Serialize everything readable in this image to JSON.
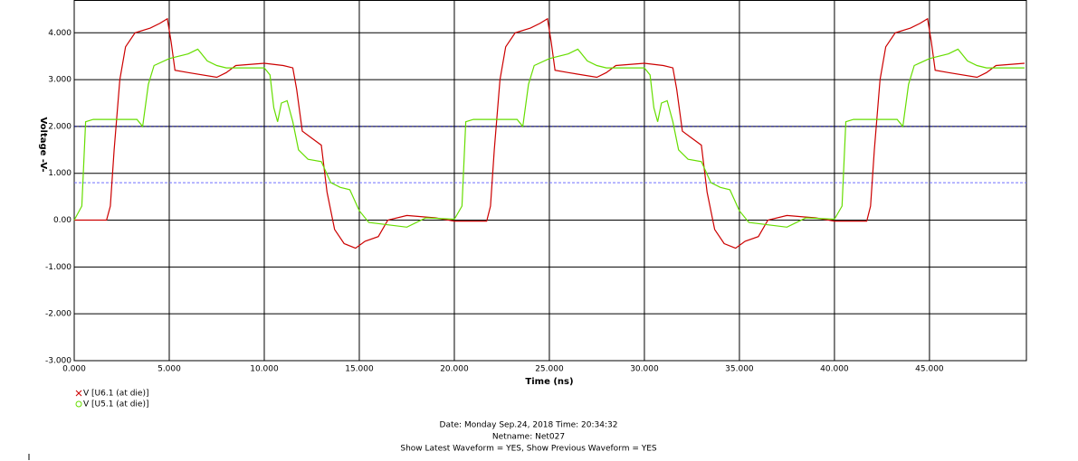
{
  "chart_data": {
    "type": "line",
    "xlabel": "Time (ns)",
    "ylabel": "Voltage -V-",
    "xlim": [
      0,
      50.1
    ],
    "ylim": [
      -3,
      4.7
    ],
    "xticks": [
      {
        "value": 0,
        "label": "0.000"
      },
      {
        "value": 5,
        "label": "5.000"
      },
      {
        "value": 10,
        "label": "10.000"
      },
      {
        "value": 15,
        "label": "15.000"
      },
      {
        "value": 20,
        "label": "20.000"
      },
      {
        "value": 25,
        "label": "25.000"
      },
      {
        "value": 30,
        "label": "30.000"
      },
      {
        "value": 35,
        "label": "35.000"
      },
      {
        "value": 40,
        "label": "40.000"
      },
      {
        "value": 45,
        "label": "45.000"
      }
    ],
    "yticks": [
      {
        "value": 4,
        "label": "4.000"
      },
      {
        "value": 3,
        "label": "3.000"
      },
      {
        "value": 2,
        "label": "2.000"
      },
      {
        "value": 1,
        "label": "1.000"
      },
      {
        "value": 0,
        "label": "0.00"
      },
      {
        "value": -1,
        "label": "-1.000"
      },
      {
        "value": -2,
        "label": "-2.000"
      },
      {
        "value": -3,
        "label": "-3.000"
      }
    ],
    "grid": true,
    "thresholds": [
      {
        "value": 2,
        "color": "#000080"
      },
      {
        "value": 0.8,
        "color": "#7070ff"
      }
    ],
    "series": [
      {
        "name": "V [U6.1 (at die)]",
        "color": "#cc0000",
        "x": [
          0,
          1.7,
          1.9,
          2.1,
          2.4,
          2.7,
          3.2,
          4,
          4.5,
          4.9,
          5.1,
          5.3,
          6,
          7.5,
          8,
          8.5,
          10,
          11,
          11.5,
          11.7,
          12,
          12.5,
          13,
          13.3,
          13.7,
          14.2,
          14.8,
          15.3,
          16,
          16.5,
          17.5,
          19,
          19.7,
          20,
          21.7,
          21.9,
          22.1,
          22.4,
          22.7,
          23.2,
          24,
          24.5,
          24.9,
          25.1,
          25.3,
          26,
          27.5,
          28,
          28.5,
          30,
          31,
          31.5,
          31.7,
          32,
          32.5,
          33,
          33.3,
          33.7,
          34.2,
          34.8,
          35.3,
          36,
          36.5,
          37.5,
          39,
          39.7,
          40,
          41.7,
          41.9,
          42.1,
          42.4,
          42.7,
          43.2,
          44,
          44.5,
          44.9,
          45.1,
          45.3,
          46,
          47.5,
          48,
          48.5,
          50
        ],
        "values": [
          0,
          0,
          0.3,
          1.5,
          3,
          3.7,
          4,
          4.1,
          4.2,
          4.3,
          3.8,
          3.2,
          3.15,
          3.05,
          3.15,
          3.3,
          3.35,
          3.3,
          3.25,
          2.8,
          1.9,
          1.75,
          1.6,
          0.6,
          -0.2,
          -0.5,
          -0.6,
          -0.45,
          -0.35,
          0,
          0.1,
          0.05,
          0,
          -0.02,
          -0.02,
          0.3,
          1.5,
          3,
          3.7,
          4,
          4.1,
          4.2,
          4.3,
          3.8,
          3.2,
          3.15,
          3.05,
          3.15,
          3.3,
          3.35,
          3.3,
          3.25,
          2.8,
          1.9,
          1.75,
          1.6,
          0.6,
          -0.2,
          -0.5,
          -0.6,
          -0.45,
          -0.35,
          0,
          0.1,
          0.05,
          0,
          -0.02,
          -0.02,
          0.3,
          1.5,
          3,
          3.7,
          4,
          4.1,
          4.2,
          4.3,
          3.8,
          3.2,
          3.15,
          3.05,
          3.15,
          3.3,
          3.35
        ]
      },
      {
        "name": "V [U5.1 (at die)]",
        "color": "#66dd00",
        "x": [
          0,
          0.4,
          0.6,
          1,
          3.3,
          3.6,
          3.9,
          4.2,
          5,
          6,
          6.5,
          7,
          7.5,
          8,
          10,
          10.3,
          10.5,
          10.7,
          10.9,
          11.2,
          11.5,
          11.8,
          12.3,
          13,
          13.5,
          14,
          14.5,
          15,
          15.5,
          16.5,
          17.5,
          18.5,
          20,
          20.4,
          20.6,
          21,
          23.3,
          23.6,
          23.9,
          24.2,
          25,
          26,
          26.5,
          27,
          27.5,
          28,
          30,
          30.3,
          30.5,
          30.7,
          30.9,
          31.2,
          31.5,
          31.8,
          32.3,
          33,
          33.5,
          34,
          34.5,
          35,
          35.5,
          36.5,
          37.5,
          38.5,
          40,
          40.4,
          40.6,
          41,
          43.3,
          43.6,
          43.9,
          44.2,
          45,
          46,
          46.5,
          47,
          47.5,
          48,
          50
        ],
        "values": [
          0,
          0.3,
          2.1,
          2.15,
          2.15,
          2,
          2.9,
          3.3,
          3.45,
          3.55,
          3.65,
          3.4,
          3.3,
          3.25,
          3.25,
          3.1,
          2.4,
          2.1,
          2.5,
          2.55,
          2.1,
          1.5,
          1.3,
          1.25,
          0.8,
          0.7,
          0.65,
          0.2,
          -0.05,
          -0.1,
          -0.15,
          0.05,
          0.02,
          0.3,
          2.1,
          2.15,
          2.15,
          2,
          2.9,
          3.3,
          3.45,
          3.55,
          3.65,
          3.4,
          3.3,
          3.25,
          3.25,
          3.1,
          2.4,
          2.1,
          2.5,
          2.55,
          2.1,
          1.5,
          1.3,
          1.25,
          0.8,
          0.7,
          0.65,
          0.2,
          -0.05,
          -0.1,
          -0.15,
          0.05,
          0.02,
          0.3,
          2.1,
          2.15,
          2.15,
          2,
          2.9,
          3.3,
          3.45,
          3.55,
          3.65,
          3.4,
          3.3,
          3.25,
          3.25
        ]
      }
    ],
    "footer": [
      "Date: Monday Sep.24, 2018  Time: 20:34:32",
      "Netname: Net027",
      "Show Latest Waveform = YES,  Show Previous Waveform = YES"
    ]
  }
}
